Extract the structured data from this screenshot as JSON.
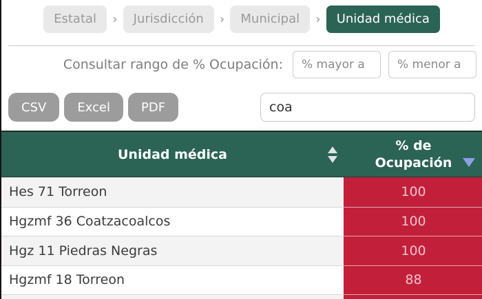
{
  "breadcrumb": {
    "separator": "›",
    "items": [
      {
        "label": "Estatal",
        "active": false
      },
      {
        "label": "Jurisdicción",
        "active": false
      },
      {
        "label": "Municipal",
        "active": false
      },
      {
        "label": "Unidad médica",
        "active": true
      }
    ]
  },
  "filter": {
    "label": "Consultar rango de % Ocupación:",
    "min_placeholder": "% mayor a",
    "max_placeholder": "% menor a"
  },
  "toolbar": {
    "csv_label": "CSV",
    "excel_label": "Excel",
    "pdf_label": "PDF",
    "search_value": "coa"
  },
  "table": {
    "columns": [
      {
        "label": "Unidad médica",
        "sort_icon": "sort-both-triangles"
      },
      {
        "label": "% de Ocupación",
        "sort_icon": "sort-descending-triangle"
      }
    ],
    "rows": [
      {
        "name": "Hes 71 Torreon",
        "value": "100"
      },
      {
        "name": "Hgzmf 36 Coatzacoalcos",
        "value": "100"
      },
      {
        "name": "Hgz 11 Piedras Negras",
        "value": "100"
      },
      {
        "name": "Hgzmf 18 Torreon",
        "value": "88"
      }
    ]
  },
  "colors": {
    "active_pill_green": "#2b6355",
    "header_green": "#2b6355",
    "occupancy_red": "#c2203a",
    "occupancy_text_pink": "#f0c2cb",
    "button_gray": "#9c9c9c",
    "pill_gray": "#e9e9e9",
    "sort_arrow_blue": "#8c9fe4"
  }
}
